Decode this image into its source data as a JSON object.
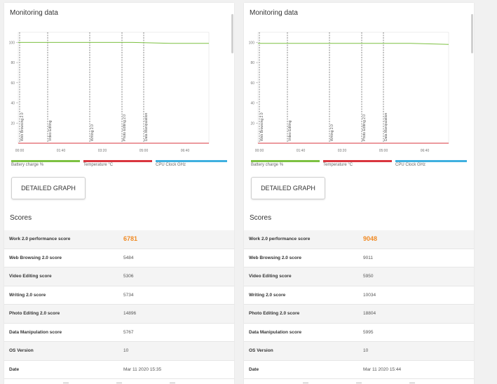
{
  "panels": [
    {
      "monitoring_title": "Monitoring data",
      "y_ticks": [
        "100",
        "80",
        "60",
        "40",
        "20"
      ],
      "x_ticks": [
        "00:00",
        "01:40",
        "03:20",
        "05:00",
        "06:40"
      ],
      "markers": [
        "Web Browsing 2.0",
        "Video Editing",
        "Writing 2.0",
        "Photo Editing 2.0",
        "Data Manipulation"
      ],
      "battery_level": [
        100,
        100,
        100,
        100,
        99,
        99
      ],
      "legend": {
        "battery": "Battery charge %",
        "temperature": "Temperature °C",
        "cpu": "CPU Clock GHz"
      },
      "detail_button": "DETAILED GRAPH",
      "scores_title": "Scores",
      "scores": [
        {
          "label": "Work 2.0 performance score",
          "value": "6781"
        },
        {
          "label": "Web Browsing 2.0 score",
          "value": "5484"
        },
        {
          "label": "Video Editing score",
          "value": "5306"
        },
        {
          "label": "Writing 2.0 score",
          "value": "5734"
        },
        {
          "label": "Photo Editing 2.0 score",
          "value": "14896"
        },
        {
          "label": "Data Manipulation score",
          "value": "5767"
        },
        {
          "label": "OS Version",
          "value": "10"
        },
        {
          "label": "Date",
          "value": "Mar 11 2020 15:35"
        }
      ]
    },
    {
      "monitoring_title": "Monitoring data",
      "y_ticks": [
        "100",
        "80",
        "60",
        "40",
        "20"
      ],
      "x_ticks": [
        "00:00",
        "01:40",
        "03:20",
        "05:00",
        "06:40"
      ],
      "markers": [
        "Web Browsing 2.0",
        "Video Editing",
        "Writing 2.0",
        "Photo Editing 2.0",
        "Data Manipulation"
      ],
      "battery_level": [
        99,
        99,
        99,
        99,
        99,
        98
      ],
      "legend": {
        "battery": "Battery charge %",
        "temperature": "Temperature °C",
        "cpu": "CPU Clock GHz"
      },
      "detail_button": "DETAILED GRAPH",
      "scores_title": "Scores",
      "scores": [
        {
          "label": "Work 2.0 performance score",
          "value": "9048"
        },
        {
          "label": "Web Browsing 2.0 score",
          "value": "9011"
        },
        {
          "label": "Video Editing score",
          "value": "5950"
        },
        {
          "label": "Writing 2.0 score",
          "value": "10034"
        },
        {
          "label": "Photo Editing 2.0 score",
          "value": "18804"
        },
        {
          "label": "Data Manipulation score",
          "value": "5995"
        },
        {
          "label": "OS Version",
          "value": "10"
        },
        {
          "label": "Date",
          "value": "Mar 11 2020 15:44"
        }
      ]
    }
  ],
  "colors": {
    "battery": "#7dc142",
    "temperature": "#d9363e",
    "cpu": "#3fb0df",
    "score_highlight": "#f08a24"
  },
  "nav_icons": [
    "menu-icon",
    "home-icon",
    "back-icon"
  ]
}
